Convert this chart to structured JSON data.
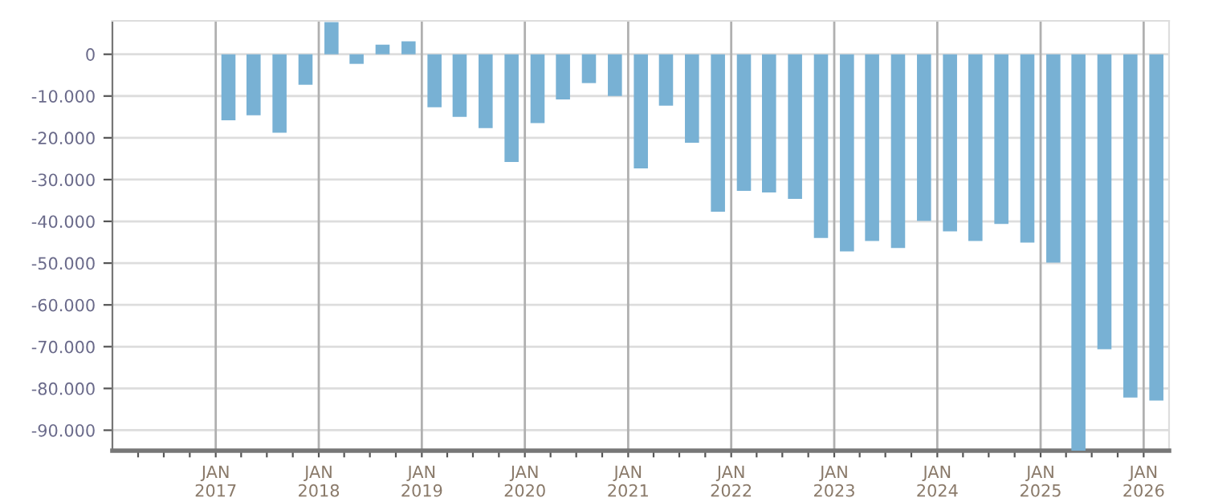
{
  "chart_data": {
    "type": "bar",
    "x": [
      "2017-02-15",
      "2017-05-15",
      "2017-08-15",
      "2017-11-15",
      "2018-02-15",
      "2018-05-15",
      "2018-08-15",
      "2018-11-15",
      "2019-02-15",
      "2019-05-15",
      "2019-08-15",
      "2019-11-15",
      "2020-02-15",
      "2020-05-15",
      "2020-08-15",
      "2020-11-15",
      "2021-02-15",
      "2021-05-15",
      "2021-08-15",
      "2021-11-15",
      "2022-02-15",
      "2022-05-15",
      "2022-08-15",
      "2022-11-15",
      "2023-02-15",
      "2023-05-15",
      "2023-08-15",
      "2023-11-15",
      "2024-02-15",
      "2024-05-15",
      "2024-08-15",
      "2024-11-15",
      "2025-02-15",
      "2025-05-15",
      "2025-08-15",
      "2025-11-15",
      "2026-02-15"
    ],
    "values": [
      -15800,
      -14600,
      -18800,
      -7300,
      7700,
      -2300,
      2300,
      3100,
      -12700,
      -15000,
      -17700,
      -25800,
      -16500,
      -10800,
      -6900,
      -10000,
      -27300,
      -12300,
      -21200,
      -37700,
      -32700,
      -33100,
      -34600,
      -44000,
      -47200,
      -44700,
      -46400,
      -39900,
      -42400,
      -44700,
      -40600,
      -45100,
      -49900,
      -94900,
      -70600,
      -82200,
      -82900
    ],
    "color": "#78b1d4",
    "xlim": [
      "2016-01-01",
      "2026-04-01"
    ],
    "ylim": [
      -94900,
      8000
    ],
    "yticks": [
      0,
      {
        "value": -10000,
        "label": "-10.000"
      },
      {
        "value": -20000,
        "label": "-20.000"
      },
      {
        "value": -30000,
        "label": "-30.000"
      },
      {
        "value": -40000,
        "label": "-40.000"
      },
      {
        "value": -50000,
        "label": "-50.000"
      },
      {
        "value": -60000,
        "label": "-60.000"
      },
      {
        "value": -70000,
        "label": "-70.000"
      },
      {
        "value": -80000,
        "label": "-80.000"
      },
      {
        "value": -90000,
        "label": "-90.000"
      }
    ],
    "xticks": [
      {
        "value": "2016-04-01",
        "label": null
      },
      {
        "value": "2016-07-01",
        "label": null
      },
      {
        "value": "2016-10-01",
        "label": null
      },
      {
        "value": "2017-01-01",
        "label": "JAN\n2017"
      },
      {
        "value": "2017-04-01",
        "label": null
      },
      {
        "value": "2017-07-01",
        "label": null
      },
      {
        "value": "2017-10-01",
        "label": null
      },
      {
        "value": "2018-01-01",
        "label": "JAN\n2018"
      },
      {
        "value": "2018-04-01",
        "label": null
      },
      {
        "value": "2018-07-01",
        "label": null
      },
      {
        "value": "2018-10-01",
        "label": null
      },
      {
        "value": "2019-01-01",
        "label": "JAN\n2019"
      },
      {
        "value": "2019-04-01",
        "label": null
      },
      {
        "value": "2019-07-01",
        "label": null
      },
      {
        "value": "2019-10-01",
        "label": null
      },
      {
        "value": "2020-01-01",
        "label": "JAN\n2020"
      },
      {
        "value": "2020-04-01",
        "label": null
      },
      {
        "value": "2020-07-01",
        "label": null
      },
      {
        "value": "2020-10-01",
        "label": null
      },
      {
        "value": "2021-01-01",
        "label": "JAN\n2021"
      },
      {
        "value": "2021-04-01",
        "label": null
      },
      {
        "value": "2021-07-01",
        "label": null
      },
      {
        "value": "2021-10-01",
        "label": null
      },
      {
        "value": "2022-01-01",
        "label": "JAN\n2022"
      },
      {
        "value": "2022-04-01",
        "label": null
      },
      {
        "value": "2022-07-01",
        "label": null
      },
      {
        "value": "2022-10-01",
        "label": null
      },
      {
        "value": "2023-01-01",
        "label": "JAN\n2023"
      },
      {
        "value": "2023-04-01",
        "label": null
      },
      {
        "value": "2023-07-01",
        "label": null
      },
      {
        "value": "2023-10-01",
        "label": null
      },
      {
        "value": "2024-01-01",
        "label": "JAN\n2024"
      },
      {
        "value": "2024-04-01",
        "label": null
      },
      {
        "value": "2024-07-01",
        "label": null
      },
      {
        "value": "2024-10-01",
        "label": null
      },
      {
        "value": "2025-01-01",
        "label": "JAN\n2025"
      },
      {
        "value": "2025-04-01",
        "label": null
      },
      {
        "value": "2025-07-01",
        "label": null
      },
      {
        "value": "2025-10-01",
        "label": null
      },
      {
        "value": "2026-01-01",
        "label": "JAN\n2026"
      }
    ],
    "grid": true,
    "legend": false
  }
}
